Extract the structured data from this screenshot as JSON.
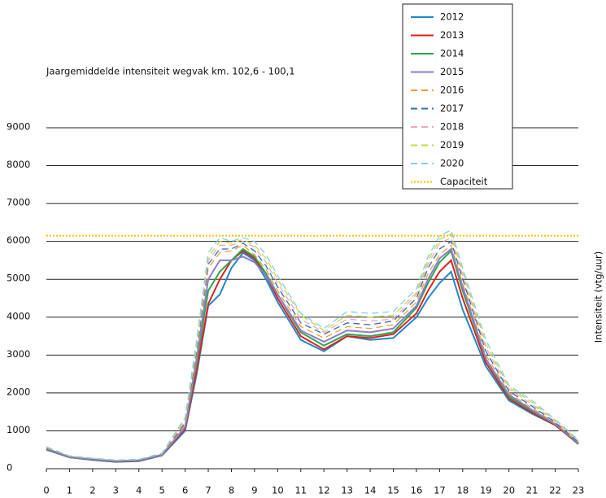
{
  "chart_data": {
    "type": "line",
    "title": "Jaargemiddelde intensiteit wegvak km. 102,6 - 100,1",
    "y_axis_label": "Intensiteit (vtg/uur)",
    "x": [
      0,
      1,
      2,
      3,
      4,
      5,
      6,
      6.5,
      7,
      7.5,
      8,
      8.5,
      9,
      9.5,
      10,
      11,
      12,
      13,
      14,
      15,
      16,
      16.5,
      17,
      17.5,
      18,
      19,
      20,
      21,
      22,
      23
    ],
    "xlim": [
      0,
      23
    ],
    "xticks": [
      0,
      1,
      2,
      3,
      4,
      5,
      6,
      7,
      8,
      9,
      10,
      11,
      12,
      13,
      14,
      15,
      16,
      17,
      18,
      19,
      20,
      21,
      22,
      23
    ],
    "ylim": [
      0,
      9000
    ],
    "yticks": [
      0,
      1000,
      2000,
      3000,
      4000,
      5000,
      6000,
      7000,
      8000,
      9000
    ],
    "grid": true,
    "legend": "top-right",
    "series": [
      {
        "name": "2012",
        "color": "#1f8ac9",
        "dashed": false,
        "values": [
          500,
          300,
          230,
          180,
          200,
          350,
          1000,
          2500,
          4300,
          4600,
          5300,
          5700,
          5500,
          5000,
          4400,
          3400,
          3100,
          3500,
          3400,
          3450,
          4000,
          4500,
          4900,
          5200,
          4200,
          2700,
          1800,
          1450,
          1150,
          650
        ]
      },
      {
        "name": "2013",
        "color": "#e02020",
        "dashed": false,
        "values": [
          520,
          300,
          240,
          190,
          210,
          360,
          1050,
          2600,
          4350,
          5000,
          5500,
          5750,
          5550,
          5100,
          4500,
          3500,
          3150,
          3500,
          3450,
          3550,
          4100,
          4700,
          5200,
          5500,
          4500,
          2800,
          1850,
          1480,
          1150,
          660
        ]
      },
      {
        "name": "2014",
        "color": "#2aa84a",
        "dashed": false,
        "values": [
          530,
          310,
          250,
          200,
          220,
          370,
          1100,
          2800,
          4700,
          5200,
          5500,
          5800,
          5600,
          5150,
          4600,
          3600,
          3250,
          3550,
          3500,
          3600,
          4250,
          4900,
          5450,
          5750,
          4700,
          2900,
          1900,
          1520,
          1170,
          670
        ]
      },
      {
        "name": "2015",
        "color": "#8c7ccc",
        "dashed": false,
        "values": [
          530,
          310,
          250,
          200,
          220,
          370,
          1100,
          2900,
          5000,
          5500,
          5500,
          5600,
          5450,
          5100,
          4600,
          3650,
          3350,
          3650,
          3600,
          3700,
          4300,
          5000,
          5550,
          5800,
          4800,
          2900,
          1950,
          1550,
          1180,
          680
        ]
      },
      {
        "name": "2016",
        "color": "#f0a030",
        "dashed": true,
        "values": [
          540,
          320,
          260,
          210,
          230,
          380,
          1150,
          3000,
          5300,
          5700,
          5750,
          5900,
          5650,
          5250,
          4700,
          3750,
          3450,
          3750,
          3700,
          3800,
          4400,
          5150,
          5650,
          5900,
          4900,
          3000,
          2000,
          1600,
          1200,
          700
        ]
      },
      {
        "name": "2017",
        "color": "#2a6fb0",
        "dashed": true,
        "values": [
          550,
          320,
          260,
          210,
          230,
          390,
          1200,
          3100,
          5400,
          5800,
          5800,
          5950,
          5750,
          5350,
          4800,
          3850,
          3550,
          3850,
          3800,
          3900,
          4500,
          5300,
          5800,
          6000,
          5000,
          3100,
          2050,
          1650,
          1220,
          710
        ]
      },
      {
        "name": "2018",
        "color": "#f4a6b8",
        "dashed": true,
        "values": [
          560,
          330,
          270,
          220,
          240,
          400,
          1250,
          3200,
          5500,
          5900,
          5900,
          6000,
          5850,
          5450,
          4900,
          3950,
          3600,
          3950,
          3900,
          3950,
          4600,
          5400,
          5950,
          6100,
          5100,
          3200,
          2100,
          1700,
          1250,
          730
        ]
      },
      {
        "name": "2019",
        "color": "#c8d840",
        "dashed": true,
        "values": [
          570,
          330,
          270,
          220,
          240,
          400,
          1300,
          3300,
          5600,
          6000,
          5950,
          6050,
          5900,
          5550,
          5000,
          4050,
          3650,
          4050,
          4000,
          4050,
          4650,
          5500,
          6050,
          6200,
          5200,
          3300,
          2150,
          1750,
          1280,
          740
        ]
      },
      {
        "name": "2020",
        "color": "#80d0f0",
        "dashed": true,
        "values": [
          580,
          340,
          280,
          230,
          250,
          410,
          1350,
          3400,
          5700,
          6100,
          6000,
          6100,
          6000,
          5650,
          5100,
          4100,
          3700,
          4150,
          4100,
          4150,
          4750,
          5600,
          6150,
          6300,
          5300,
          3400,
          2200,
          1800,
          1300,
          760
        ]
      }
    ],
    "reference_lines": [
      {
        "name": "Capaciteit",
        "value": 6150,
        "color": "#f5c400"
      }
    ]
  }
}
